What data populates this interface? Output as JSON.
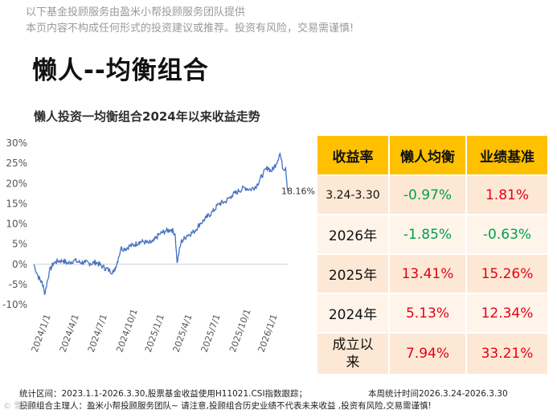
{
  "header": {
    "disclaimer_line1": "以下基金投顾服务由盈米小帮投顾服务团队提供",
    "disclaimer_line2": "本页内容不构成任何形式的投资建议或推荐。投资有风险，交易需谨慎!",
    "title": "懒人--均衡组合"
  },
  "chart_data": {
    "type": "line",
    "title": "懒人投资一均衡组合2024年以来收益走势",
    "xlabel": "",
    "ylabel": "",
    "ylim": [
      -10,
      30
    ],
    "yticks": [
      "30%",
      "25%",
      "20%",
      "15%",
      "10%",
      "5%",
      "0%",
      "-5%",
      "-10%"
    ],
    "xticks": [
      "2024/1/1",
      "2024/4/1",
      "2024/7/1",
      "2024/10/1",
      "2025/1/1",
      "2025/4/1",
      "2025/7/1",
      "2025/10/1",
      "2026/1/1"
    ],
    "end_label": "18.16%",
    "line_color": "#4472c4",
    "grid": false,
    "series": [
      {
        "x": [
          "2024-01-01",
          "2024-01-15",
          "2024-02-01",
          "2024-02-05",
          "2024-02-20",
          "2024-03-05",
          "2024-03-20",
          "2024-04-05",
          "2024-04-20",
          "2024-05-10",
          "2024-05-25",
          "2024-06-15",
          "2024-07-01",
          "2024-07-20",
          "2024-08-10",
          "2024-08-31",
          "2024-09-15",
          "2024-09-30",
          "2024-10-08",
          "2024-10-20",
          "2024-11-05",
          "2024-11-20",
          "2024-12-05",
          "2024-12-20",
          "2025-01-05",
          "2025-01-20",
          "2025-02-10",
          "2025-03-01",
          "2025-03-20",
          "2025-04-01",
          "2025-04-07",
          "2025-04-20",
          "2025-05-10",
          "2025-05-31",
          "2025-06-20",
          "2025-07-10",
          "2025-07-31",
          "2025-08-20",
          "2025-09-10",
          "2025-09-30",
          "2025-10-20",
          "2025-11-10",
          "2025-11-30",
          "2025-12-20",
          "2026-01-10",
          "2026-01-25",
          "2026-02-05",
          "2026-02-20",
          "2026-03-05",
          "2026-03-15",
          "2026-03-23",
          "2026-03-30"
        ],
        "values": [
          0.0,
          -3.0,
          -5.2,
          -7.5,
          -1.8,
          0.3,
          0.8,
          0.9,
          0.2,
          1.0,
          0.5,
          0.4,
          0.2,
          0.5,
          -0.6,
          -1.5,
          -2.0,
          1.5,
          4.0,
          3.8,
          4.5,
          4.8,
          5.5,
          5.6,
          5.2,
          5.6,
          7.5,
          8.2,
          8.6,
          7.5,
          0.4,
          5.5,
          7.2,
          8.0,
          10.0,
          11.5,
          13.0,
          15.0,
          15.5,
          17.0,
          18.0,
          19.0,
          18.5,
          19.5,
          22.5,
          24.0,
          23.0,
          24.8,
          27.5,
          23.5,
          24.0,
          18.16
        ]
      }
    ]
  },
  "table": {
    "headers": [
      "收益率",
      "懒人均衡",
      "业绩基准"
    ],
    "rows": [
      {
        "label": "3.24-3.30",
        "fund": "-0.97%",
        "bench": "1.81%"
      },
      {
        "label": "2026年",
        "fund": "-1.85%",
        "bench": "-0.63%"
      },
      {
        "label": "2025年",
        "fund": "13.41%",
        "bench": "15.26%"
      },
      {
        "label": "2024年",
        "fund": "5.13%",
        "bench": "12.34%"
      },
      {
        "label": "成立以来",
        "fund": "7.94%",
        "bench": "33.21%"
      }
    ]
  },
  "footer": {
    "stats_range": "统计区间：2023.1.1-2026.3.30,股票基金收益使用H11021.CSI指数跟踪；",
    "weekly_range": "本周统计时间2026.3.24-2026.3.30",
    "manager_line": "投顾组合主理人：盈米小帮投顾服务团队~ 请注意,投顾组合历史业绩不代表未来收益 ,投资有风险,交易需谨慎!",
    "watermark": "© 雪球"
  }
}
